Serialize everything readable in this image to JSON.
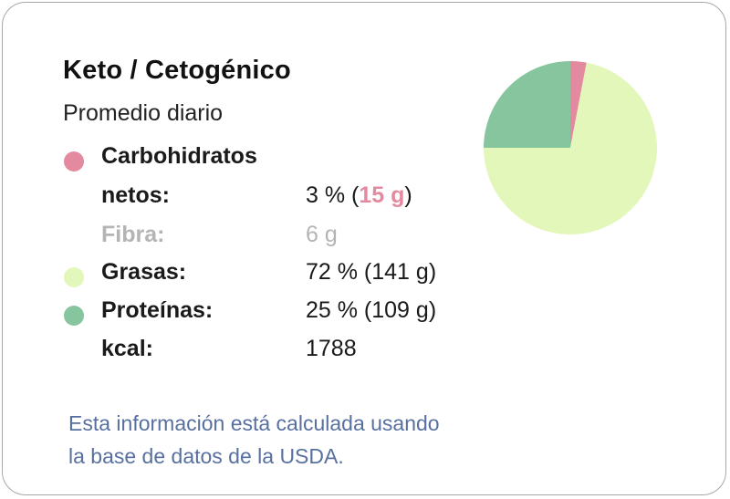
{
  "card": {
    "title": "Keto / Cetogénico",
    "subtitle": "Promedio diario"
  },
  "nutrients": {
    "carbs": {
      "label_line1": "Carbohidratos",
      "label_line2": "netos:",
      "value": "3 % (",
      "value_grams": "15 g",
      "value_close": ")",
      "color": "#e48aa0"
    },
    "fiber": {
      "label": "Fibra:",
      "value": "6 g"
    },
    "fat": {
      "label": "Grasas:",
      "value": "72 % (141 g)",
      "color": "#e3f7bb"
    },
    "protein": {
      "label": "Proteínas:",
      "value": "25 % (109 g)",
      "color": "#87c59e"
    },
    "kcal": {
      "label": "kcal:",
      "value": "1788"
    }
  },
  "footnote": {
    "line1": "Esta información está calculada usando",
    "line2": "la base de datos de la USDA."
  },
  "chart_data": {
    "type": "pie",
    "categories": [
      "Carbohidratos netos",
      "Grasas",
      "Proteínas"
    ],
    "values": [
      3,
      72,
      25
    ],
    "colors": [
      "#e48aa0",
      "#e3f7bb",
      "#87c59e"
    ],
    "start": "top",
    "direction": "clockwise"
  }
}
